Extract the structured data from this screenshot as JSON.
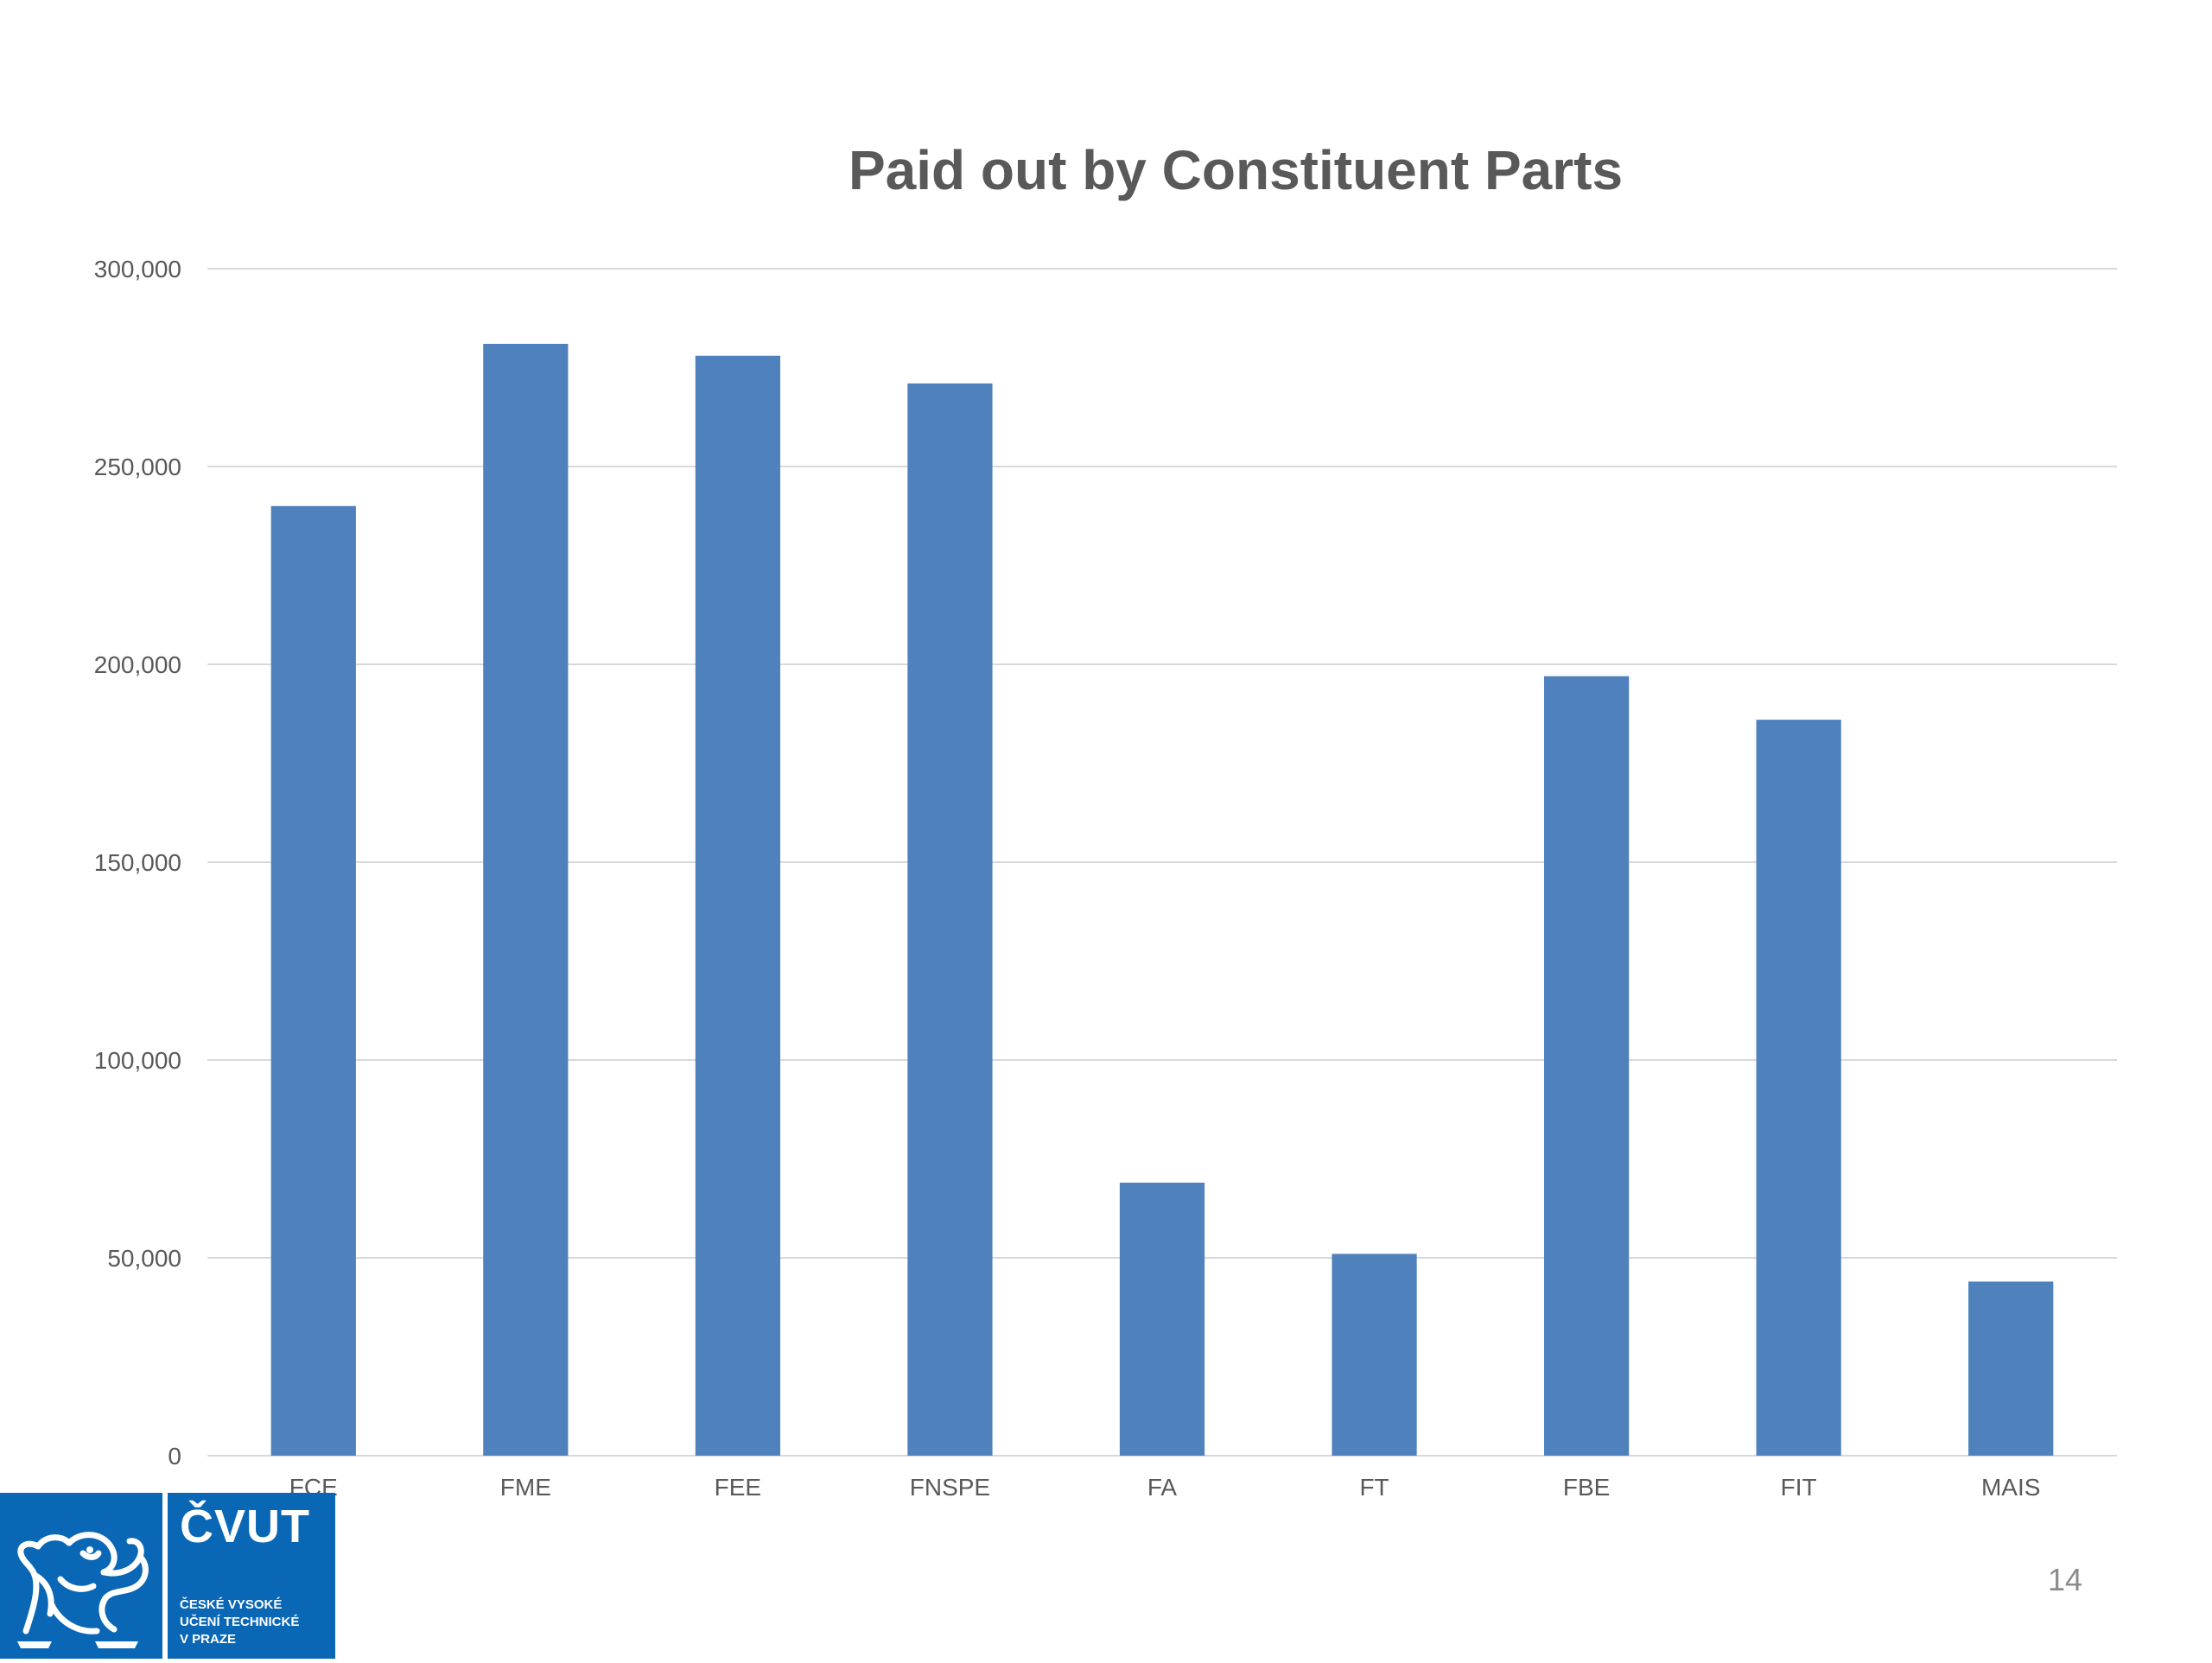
{
  "slide": {
    "page_number": "14",
    "logo": {
      "name": "ČVUT",
      "subtitle": [
        "ČESKÉ VYSOKÉ",
        "UČENÍ TECHNICKÉ",
        "V PRAZE"
      ],
      "emblem_icon": "lion-emblem-icon",
      "color": "#0a67b5"
    }
  },
  "chart_data": {
    "type": "bar",
    "title": "Paid out by Constituent Parts",
    "xlabel": "",
    "ylabel": "",
    "categories": [
      "FCE",
      "FME",
      "FEE",
      "FNSPE",
      "FA",
      "FT",
      "FBE",
      "FIT",
      "MAIS"
    ],
    "values": [
      240000,
      281000,
      278000,
      271000,
      69000,
      51000,
      197000,
      186000,
      44000
    ],
    "ylim": [
      0,
      300000
    ],
    "yticks": [
      0,
      50000,
      100000,
      150000,
      200000,
      250000,
      300000
    ],
    "ytick_labels": [
      "0",
      "50,000",
      "100,000",
      "150,000",
      "200,000",
      "250,000",
      "300,000"
    ],
    "grid": true,
    "legend": "none",
    "bar_color": "#4f81bd",
    "grid_color": "#d9d9d9",
    "axis_color": "#d9d9d9"
  }
}
